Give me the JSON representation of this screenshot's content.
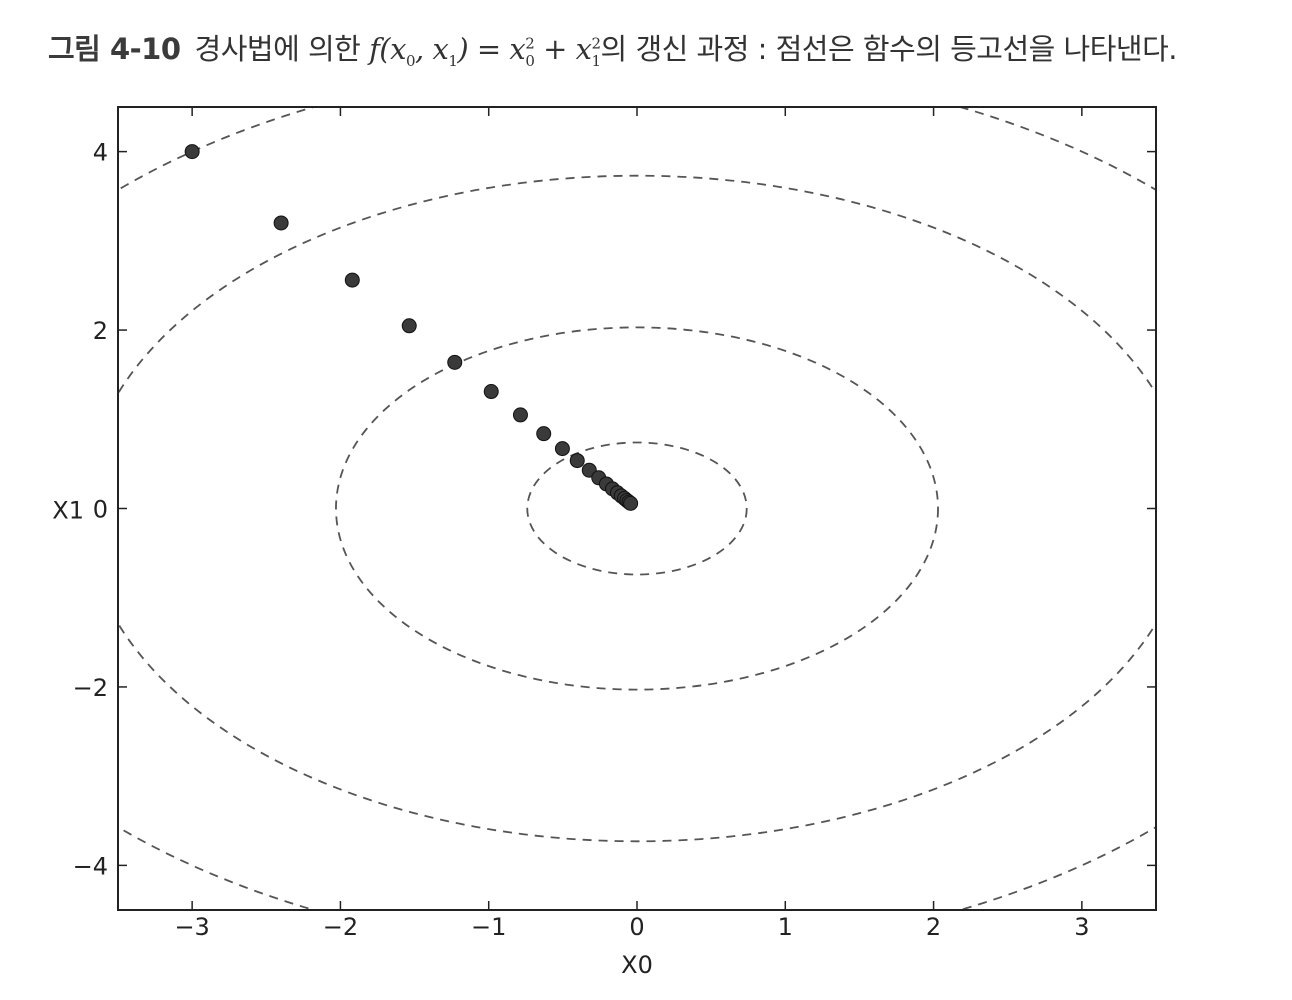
{
  "caption": {
    "label": "그림 4-10",
    "text_before": "경사법에 의한",
    "formula_f": "f",
    "formula_args": "(x",
    "formula_arg_sub0": "0",
    "formula_mid": ", x",
    "formula_arg_sub1": "1",
    "formula_eq": ") = x",
    "formula_term1_sup": "2",
    "formula_term1_sub": "0",
    "formula_plus": " + x",
    "formula_term2_sup": "2",
    "formula_term2_sub": "1",
    "text_after": "의 갱신 과정 : 점선은 함수의 등고선을 나타낸다."
  },
  "chart_data": {
    "type": "scatter",
    "xlabel": "X0",
    "ylabel": "X1",
    "xlim": [
      -3.5,
      3.5
    ],
    "ylim": [
      -4.5,
      4.5
    ],
    "xticks": [
      -3,
      -2,
      -1,
      0,
      1,
      2,
      3
    ],
    "yticks": [
      -4,
      -2,
      0,
      2,
      4
    ],
    "xtick_labels": [
      "−3",
      "−2",
      "−1",
      "0",
      "1",
      "2",
      "3"
    ],
    "ytick_labels": [
      "−4",
      "−2",
      "0",
      "2",
      "4"
    ],
    "grid": false,
    "point_color": "#3a3a3a",
    "contour_color": "#555555",
    "contour_style": "dashed",
    "contour_center": [
      0,
      0
    ],
    "contour_radii": [
      0.74,
      2.03,
      3.73,
      5.0
    ],
    "points": {
      "x": [
        -3.0,
        -2.4,
        -1.92,
        -1.536,
        -1.229,
        -0.983,
        -0.786,
        -0.629,
        -0.503,
        -0.403,
        -0.322,
        -0.258,
        -0.206,
        -0.165,
        -0.132,
        -0.106,
        -0.084,
        -0.068,
        -0.054,
        -0.043
      ],
      "y": [
        4.0,
        3.2,
        2.56,
        2.048,
        1.638,
        1.311,
        1.049,
        0.839,
        0.671,
        0.537,
        0.429,
        0.344,
        0.275,
        0.22,
        0.176,
        0.141,
        0.113,
        0.09,
        0.072,
        0.058
      ]
    }
  }
}
